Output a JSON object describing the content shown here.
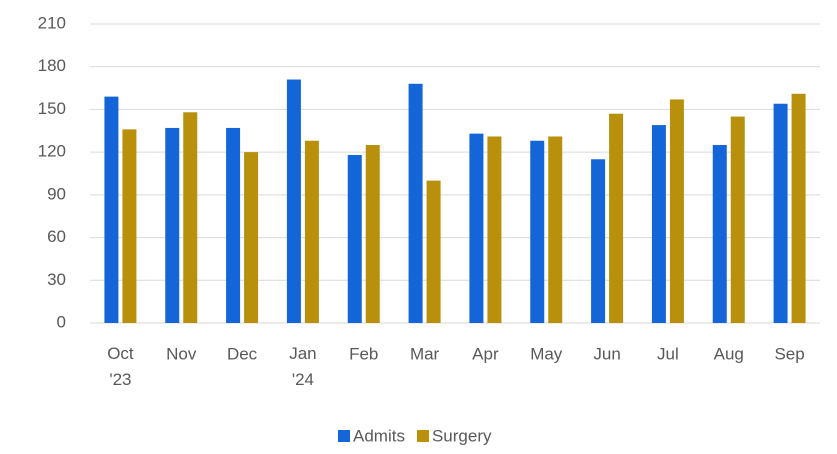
{
  "chart_data": {
    "type": "bar",
    "categories": [
      "Oct '23",
      "Nov",
      "Dec",
      "Jan '24",
      "Feb",
      "Mar",
      "Apr",
      "May",
      "Jun",
      "Jul",
      "Aug",
      "Sep"
    ],
    "series": [
      {
        "name": "Admits",
        "color": "#1466d8",
        "values": [
          159,
          137,
          137,
          171,
          118,
          168,
          133,
          128,
          115,
          139,
          125,
          154
        ]
      },
      {
        "name": "Surgery",
        "color": "#b8900c",
        "values": [
          136,
          148,
          120,
          128,
          125,
          100,
          131,
          131,
          147,
          157,
          145,
          161
        ]
      }
    ],
    "ylim": [
      0,
      210
    ],
    "yticks": [
      0,
      30,
      60,
      90,
      120,
      150,
      180,
      210
    ],
    "grid": true,
    "legend": "bottom"
  }
}
